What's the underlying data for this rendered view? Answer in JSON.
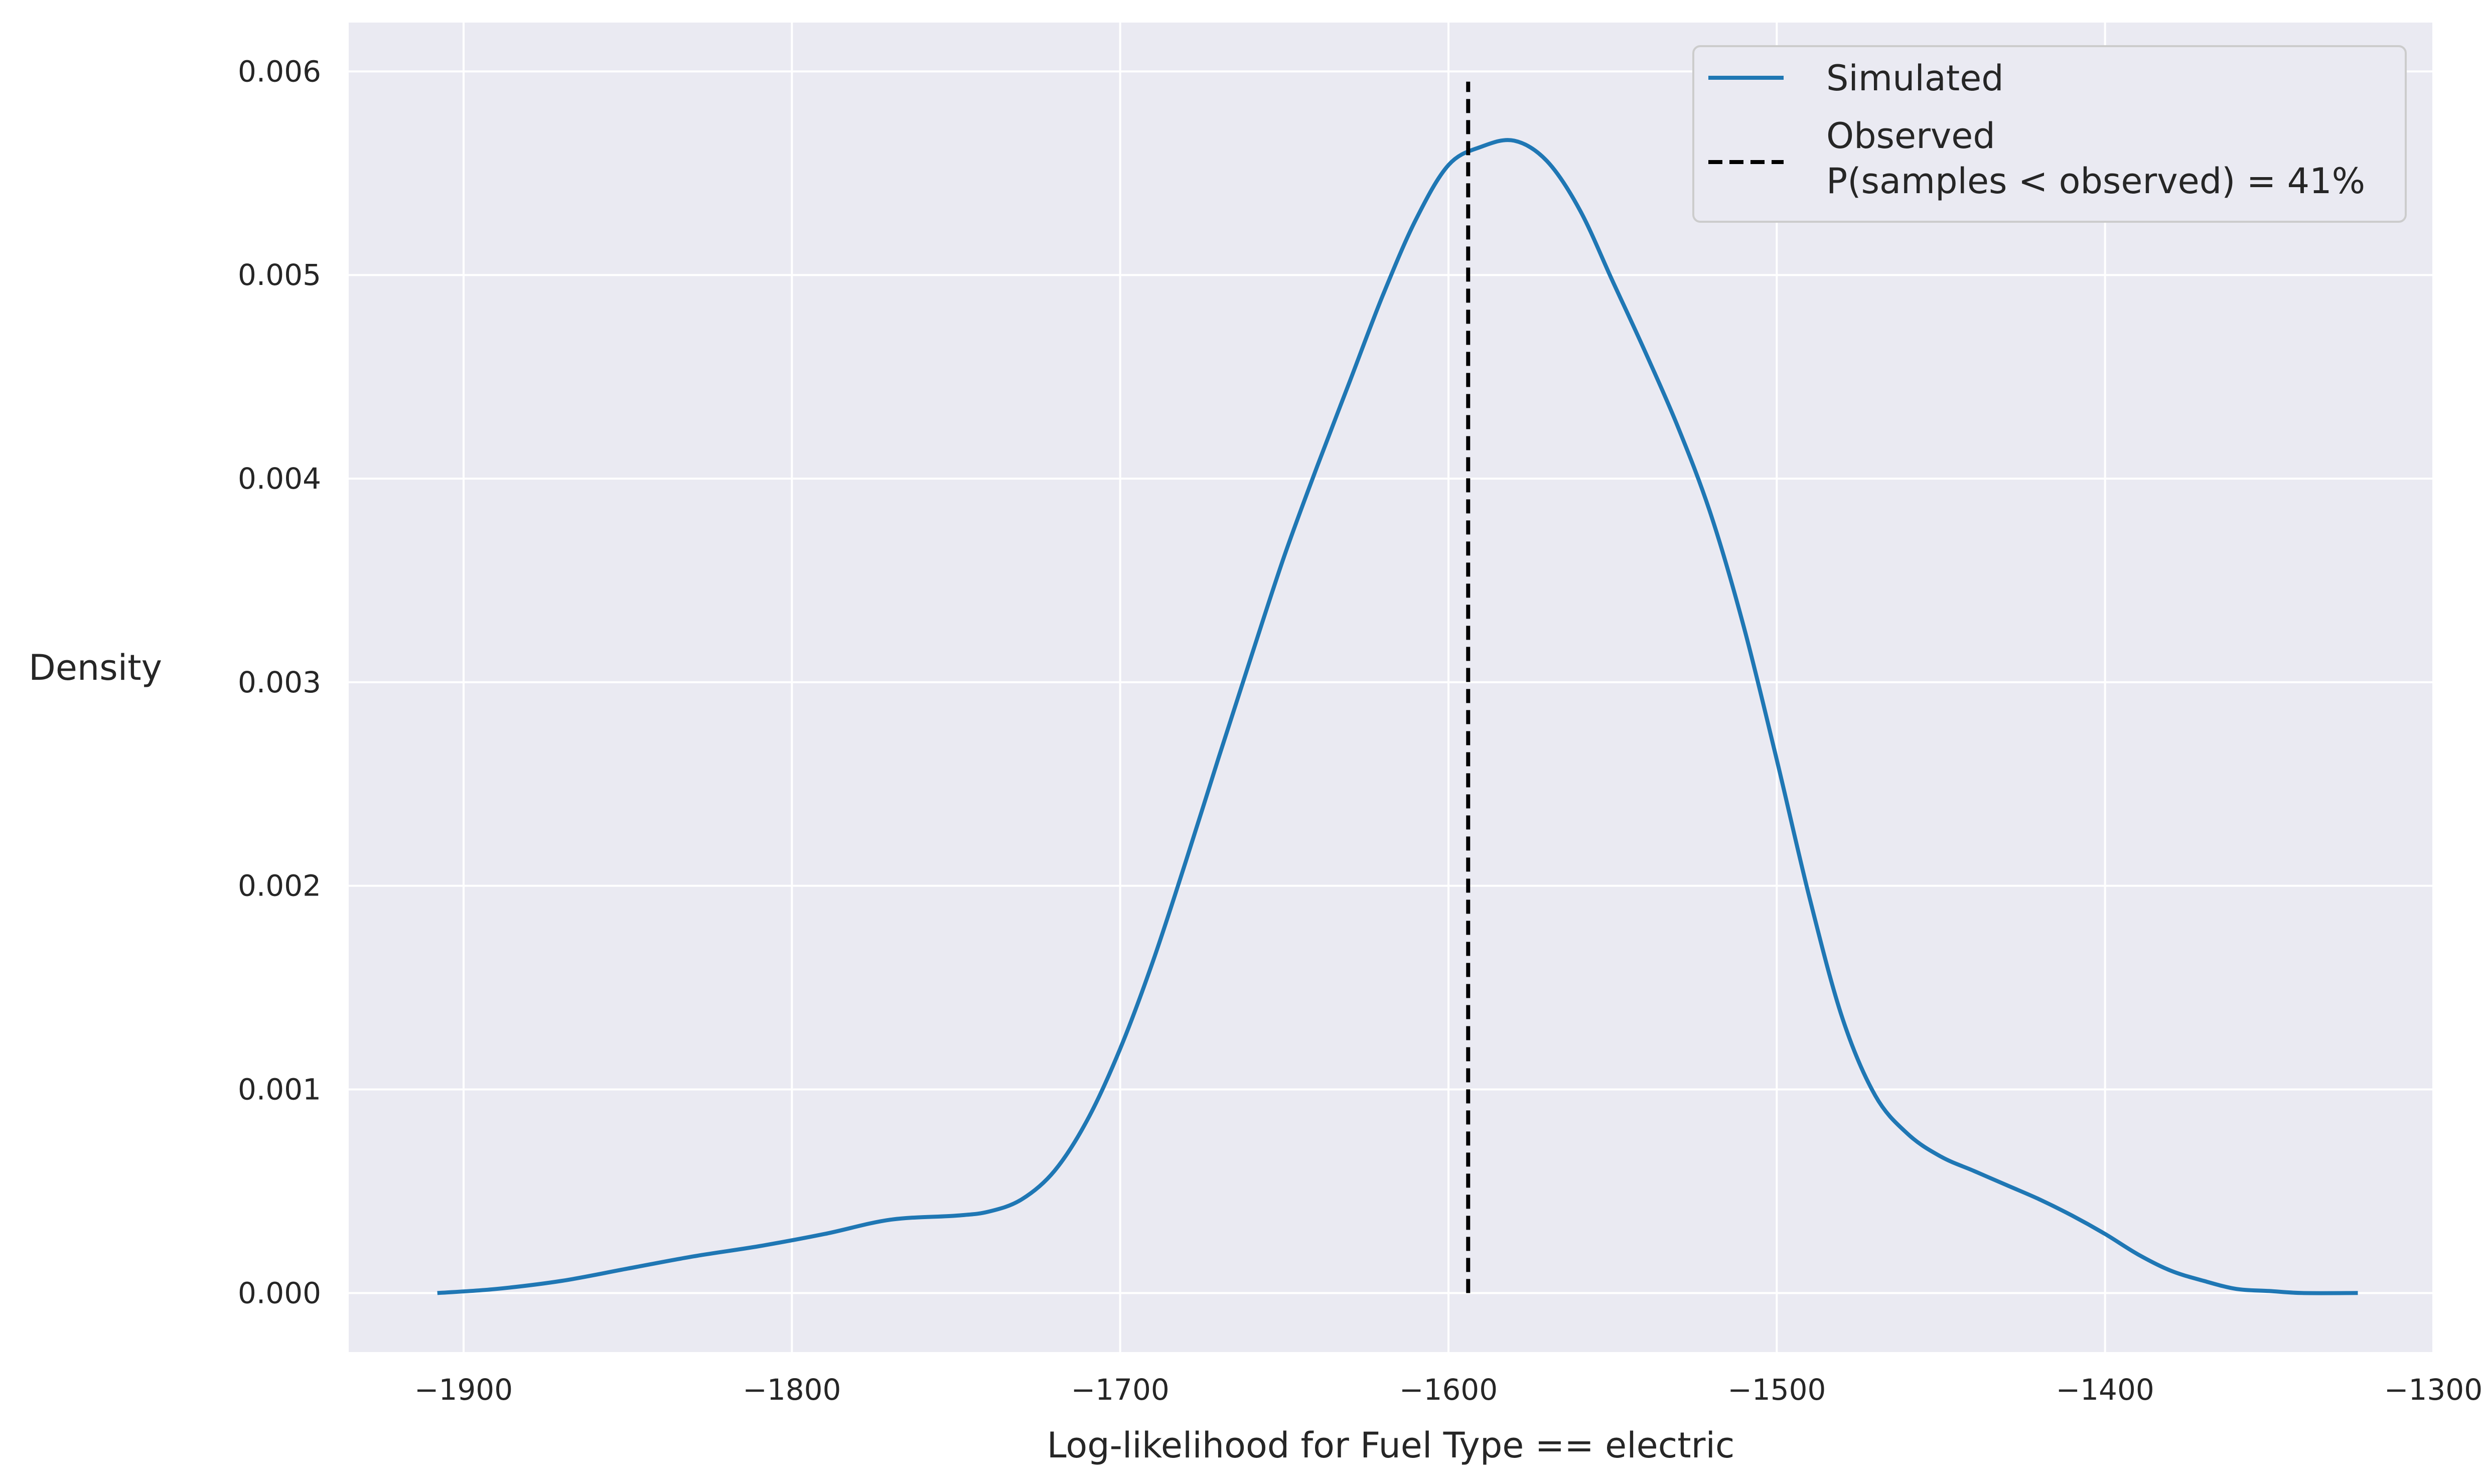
{
  "chart_data": {
    "type": "line",
    "xlabel": "Log-likelihood for Fuel Type == electric",
    "ylabel": "Density",
    "xlim": [
      -1935,
      -1300
    ],
    "ylim": [
      -0.00029,
      0.00624
    ],
    "x_ticks": [
      -1900,
      -1800,
      -1700,
      -1600,
      -1500,
      -1400,
      -1300
    ],
    "x_tick_labels": [
      "−1900",
      "−1800",
      "−1700",
      "−1600",
      "−1500",
      "−1400",
      "−1300"
    ],
    "y_ticks": [
      0.0,
      0.001,
      0.002,
      0.003,
      0.004,
      0.005,
      0.006
    ],
    "y_tick_labels": [
      "0.000",
      "0.001",
      "0.002",
      "0.003",
      "0.004",
      "0.005",
      "0.006"
    ],
    "grid": true,
    "background": "#eaeaf2",
    "legend": {
      "placement": "top-right",
      "entries": [
        {
          "label": "Simulated",
          "style": "solid",
          "color": "#1f77b4"
        },
        {
          "label_lines": [
            "Observed",
            "P(samples < observed) = 41%"
          ],
          "style": "dashed",
          "color": "#000000"
        }
      ]
    },
    "series": [
      {
        "name": "Simulated",
        "color": "#1f77b4",
        "x": [
          -1908,
          -1890,
          -1870,
          -1850,
          -1830,
          -1810,
          -1790,
          -1770,
          -1750,
          -1740,
          -1730,
          -1720,
          -1710,
          -1700,
          -1690,
          -1680,
          -1670,
          -1660,
          -1650,
          -1640,
          -1630,
          -1620,
          -1610,
          -1600,
          -1590,
          -1580,
          -1570,
          -1560,
          -1550,
          -1540,
          -1530,
          -1520,
          -1510,
          -1500,
          -1490,
          -1480,
          -1470,
          -1460,
          -1450,
          -1440,
          -1430,
          -1420,
          -1410,
          -1400,
          -1390,
          -1380,
          -1370,
          -1360,
          -1350,
          -1340,
          -1323
        ],
        "y": [
          0.0,
          2e-05,
          6e-05,
          0.00012,
          0.00018,
          0.00023,
          0.00029,
          0.00036,
          0.00038,
          0.0004,
          0.00046,
          0.0006,
          0.00085,
          0.0012,
          0.00163,
          0.00212,
          0.00263,
          0.00313,
          0.00362,
          0.00406,
          0.00448,
          0.0049,
          0.00527,
          0.00554,
          0.00563,
          0.00566,
          0.00556,
          0.00532,
          0.00497,
          0.00462,
          0.00425,
          0.00382,
          0.00327,
          0.00262,
          0.00194,
          0.00135,
          0.00097,
          0.00078,
          0.00067,
          0.0006,
          0.00053,
          0.00046,
          0.00038,
          0.00029,
          0.00019,
          0.00011,
          6e-05,
          2e-05,
          1e-05,
          0.0,
          0.0
        ]
      }
    ],
    "observed": {
      "x": -1594,
      "y_range": [
        0.0,
        0.00595
      ],
      "color": "#000000",
      "style": "dashed"
    }
  }
}
